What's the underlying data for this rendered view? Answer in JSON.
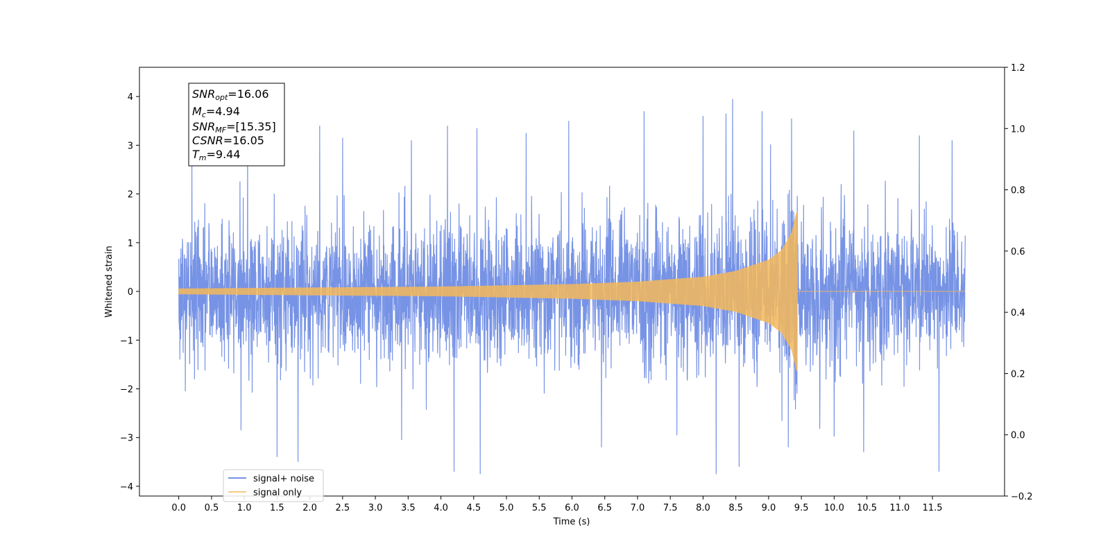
{
  "chart_data": {
    "type": "line",
    "xlabel": "Time (s)",
    "ylabel": "Whitened strain",
    "xlim": [
      -0.6,
      12.6
    ],
    "ylim": [
      -4.2,
      4.6
    ],
    "ylim_right": [
      -0.2,
      1.2
    ],
    "x_ticks": [
      "0.0",
      "0.5",
      "1.0",
      "1.5",
      "2.0",
      "2.5",
      "3.0",
      "3.5",
      "4.0",
      "4.5",
      "5.0",
      "5.5",
      "6.0",
      "6.5",
      "7.0",
      "7.5",
      "8.0",
      "8.5",
      "9.0",
      "9.5",
      "10.0",
      "10.5",
      "11.0",
      "11.5"
    ],
    "y_ticks": [
      "4",
      "3",
      "2",
      "1",
      "0",
      "−1",
      "−2",
      "−3",
      "−4"
    ],
    "y_ticks_right": [
      "1.2",
      "1.0",
      "0.8",
      "0.6",
      "0.4",
      "0.2",
      "0.0",
      "−0.2"
    ],
    "grid": false,
    "legend_location": "lower-left",
    "series": [
      {
        "name": "signal+ noise",
        "color": "#4a6fdc",
        "t_start": 0.0,
        "t_end": 12.0,
        "envelope_typical": [
          -1.6,
          1.9
        ],
        "peaks": [
          {
            "t": 0.2,
            "v": 2.8
          },
          {
            "t": 1.05,
            "v": 2.8
          },
          {
            "t": 2.15,
            "v": 3.4
          },
          {
            "t": 2.5,
            "v": 3.15
          },
          {
            "t": 3.55,
            "v": 3.1
          },
          {
            "t": 4.1,
            "v": 3.4
          },
          {
            "t": 4.55,
            "v": 3.35
          },
          {
            "t": 5.3,
            "v": 3.25
          },
          {
            "t": 5.95,
            "v": 3.5
          },
          {
            "t": 6.45,
            "v": 3.2
          },
          {
            "t": 7.1,
            "v": 3.7
          },
          {
            "t": 7.6,
            "v": 3.55
          },
          {
            "t": 8.0,
            "v": 3.6
          },
          {
            "t": 8.35,
            "v": 3.65
          },
          {
            "t": 8.45,
            "v": 3.95
          },
          {
            "t": 8.9,
            "v": 3.7
          },
          {
            "t": 9.35,
            "v": 3.55
          },
          {
            "t": 10.3,
            "v": 3.3
          },
          {
            "t": 11.3,
            "v": 3.2
          },
          {
            "t": 11.8,
            "v": 3.1
          },
          {
            "t": 1.5,
            "v": -3.4
          },
          {
            "t": 1.82,
            "v": -3.5
          },
          {
            "t": 4.2,
            "v": -3.7
          },
          {
            "t": 4.6,
            "v": -3.75
          },
          {
            "t": 0.95,
            "v": -2.85
          },
          {
            "t": 3.4,
            "v": -3.05
          },
          {
            "t": 6.45,
            "v": -3.2
          },
          {
            "t": 7.6,
            "v": -2.95
          },
          {
            "t": 8.2,
            "v": -3.75
          },
          {
            "t": 8.55,
            "v": -3.6
          },
          {
            "t": 9.3,
            "v": -3.2
          },
          {
            "t": 10.45,
            "v": -3.3
          },
          {
            "t": 11.6,
            "v": -3.7
          },
          {
            "t": 0.1,
            "v": -2.05
          }
        ]
      },
      {
        "name": "signal only",
        "color": "#f4b95a",
        "t_start": 0.0,
        "t_merger": 9.44,
        "t_end": 12.0,
        "amplitude_envelope": [
          {
            "t": 0.0,
            "a": 0.06
          },
          {
            "t": 2.0,
            "a": 0.08
          },
          {
            "t": 4.0,
            "a": 0.1
          },
          {
            "t": 6.0,
            "a": 0.15
          },
          {
            "t": 7.0,
            "a": 0.2
          },
          {
            "t": 8.0,
            "a": 0.3
          },
          {
            "t": 8.5,
            "a": 0.42
          },
          {
            "t": 9.0,
            "a": 0.65
          },
          {
            "t": 9.2,
            "a": 0.85
          },
          {
            "t": 9.35,
            "a": 1.2
          },
          {
            "t": 9.42,
            "a": 1.6
          },
          {
            "t": 9.44,
            "a": 1.65
          }
        ]
      }
    ],
    "annotation": [
      {
        "base": "SNR",
        "sub": "opt",
        "value": "=16.06"
      },
      {
        "base": "M",
        "sub": "c",
        "value": "=4.94"
      },
      {
        "base": "SNR",
        "sub": "MF",
        "value": "=[15.35]"
      },
      {
        "base": "CSNR",
        "sub": "",
        "value": "=16.05"
      },
      {
        "base": "T",
        "sub": "m",
        "value": "=9.44"
      }
    ]
  }
}
